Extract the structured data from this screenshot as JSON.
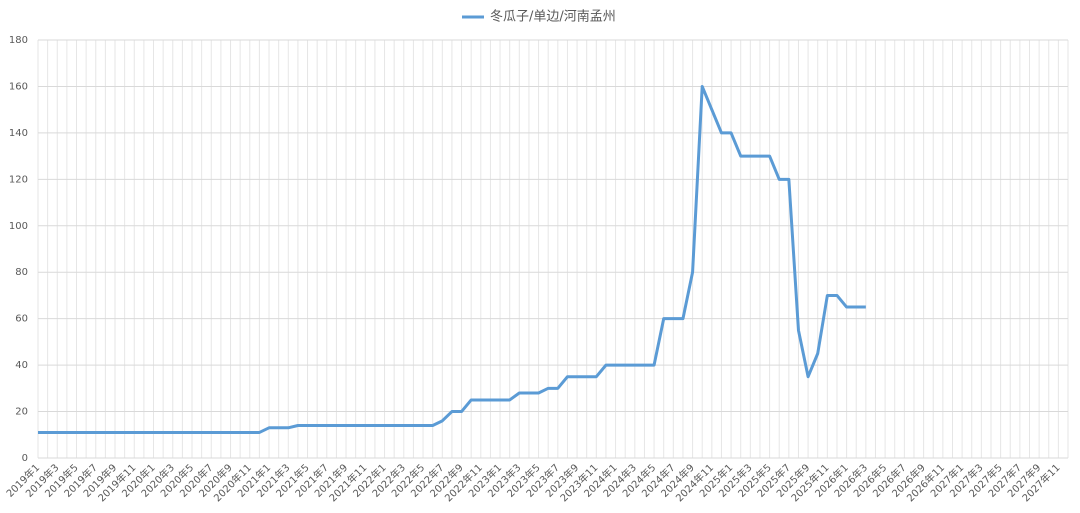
{
  "chart_data": {
    "type": "line",
    "categories": [
      "2019年1",
      null,
      "2019年3",
      null,
      "2019年5",
      null,
      "2019年7",
      null,
      "2019年9",
      null,
      "2019年11",
      null,
      "2020年1",
      null,
      "2020年3",
      null,
      "2020年5",
      null,
      "2020年7",
      null,
      "2020年9",
      null,
      "2020年11",
      null,
      "2021年1",
      null,
      "2021年3",
      null,
      "2021年5",
      null,
      "2021年7",
      null,
      "2021年9",
      null,
      "2021年11",
      null,
      "2022年1",
      null,
      "2022年3",
      null,
      "2022年5",
      null,
      "2022年7",
      null,
      "2022年9",
      null,
      "2022年11",
      null,
      "2023年1",
      null,
      "2023年3",
      null,
      "2023年5",
      null,
      "2023年7",
      null,
      "2023年9",
      null,
      "2023年11",
      null,
      "2024年1",
      null,
      "2024年3",
      null,
      "2024年5",
      null,
      "2024年7",
      null,
      "2024年9",
      null,
      "2024年11",
      null,
      "2025年1",
      null,
      "2025年3",
      null,
      "2025年5",
      null,
      "2025年7",
      null,
      "2025年9",
      null,
      "2025年11",
      null,
      "2026年1",
      null,
      "2026年3",
      null,
      "2026年5",
      null,
      "2026年7",
      null,
      "2026年9",
      null,
      "2026年11",
      null,
      "2027年1",
      null,
      "2027年3",
      null,
      "2027年5",
      null,
      "2027年7",
      null,
      "2027年9",
      null,
      "2027年11",
      null
    ],
    "series": [
      {
        "name": "冬瓜子/单边/河南孟州",
        "color": "#5b9bd5",
        "values": [
          11,
          11,
          11,
          11,
          11,
          11,
          11,
          11,
          11,
          11,
          11,
          11,
          11,
          11,
          11,
          11,
          11,
          11,
          11,
          11,
          11,
          11,
          11,
          11,
          13,
          13,
          13,
          14,
          14,
          14,
          14,
          14,
          14,
          14,
          14,
          14,
          14,
          14,
          14,
          14,
          14,
          14,
          16,
          20,
          20,
          25,
          25,
          25,
          25,
          25,
          28,
          28,
          28,
          30,
          30,
          35,
          35,
          35,
          35,
          40,
          40,
          40,
          40,
          40,
          40,
          60,
          60,
          60,
          80,
          160,
          150,
          140,
          140,
          130,
          130,
          130,
          130,
          120,
          120,
          55,
          35,
          45,
          70,
          70,
          65,
          65,
          65,
          null,
          null,
          null,
          null,
          null,
          null,
          null,
          null,
          null,
          null,
          null,
          null,
          null,
          null,
          null,
          null,
          null,
          null,
          null,
          null,
          null
        ]
      }
    ],
    "ylim": [
      0,
      180
    ],
    "yticks": [
      0,
      20,
      40,
      60,
      80,
      100,
      120,
      140,
      160,
      180
    ],
    "grid": true,
    "legend": "top"
  }
}
